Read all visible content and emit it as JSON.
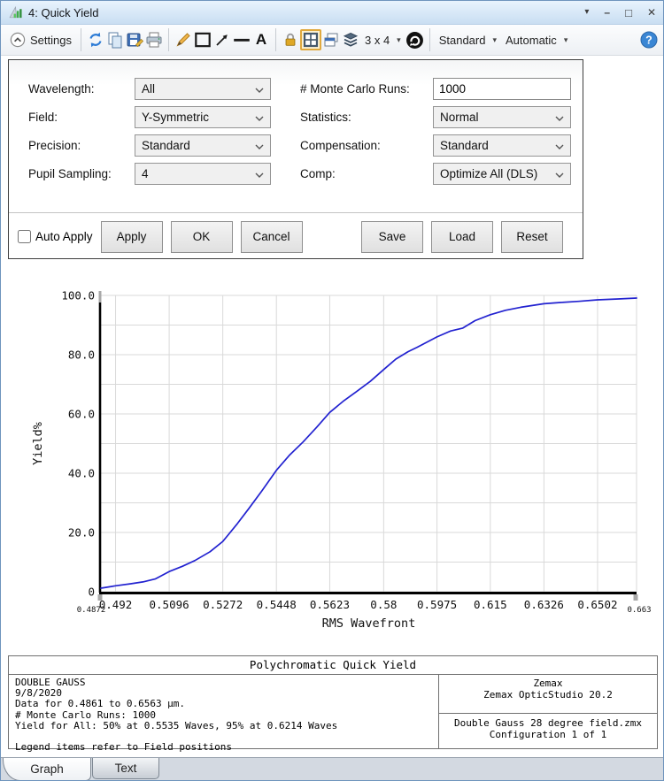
{
  "window": {
    "title": "4: Quick Yield",
    "controls": {
      "menu": "▾",
      "minimize": "–",
      "maximize": "□",
      "close": "✕"
    }
  },
  "toolbar": {
    "settings_label": "Settings",
    "text_tool_label": "A",
    "grid_size_label": "3 x 4",
    "standard_label": "Standard",
    "automatic_label": "Automatic",
    "caret": "▾",
    "help_glyph": "?"
  },
  "settings_panel": {
    "fields": [
      {
        "label": "Wavelength:",
        "value": "All",
        "type": "select"
      },
      {
        "label": "Field:",
        "value": "Y-Symmetric",
        "type": "select"
      },
      {
        "label": "Precision:",
        "value": "Standard",
        "type": "select"
      },
      {
        "label": "Pupil Sampling:",
        "value": "4",
        "type": "select"
      },
      {
        "label": "# Monte Carlo Runs:",
        "value": "1000",
        "type": "input"
      },
      {
        "label": "Statistics:",
        "value": "Normal",
        "type": "select"
      },
      {
        "label": "Compensation:",
        "value": "Standard",
        "type": "select"
      },
      {
        "label": "Comp:",
        "value": "Optimize All (DLS)",
        "type": "select"
      }
    ],
    "auto_apply_label": "Auto Apply",
    "auto_apply_checked": false,
    "buttons": [
      "Apply",
      "OK",
      "Cancel",
      "Save",
      "Load",
      "Reset"
    ]
  },
  "chart_data": {
    "type": "line",
    "title": "Polychromatic Quick Yield",
    "xlabel": "RMS Wavefront",
    "ylabel": "Yield%",
    "xlim": [
      0.4872,
      0.663
    ],
    "ylim": [
      0,
      100
    ],
    "x_major_ticks": [
      0.492,
      0.5096,
      0.5272,
      0.5448,
      0.5623,
      0.58,
      0.5975,
      0.615,
      0.6326,
      0.6502
    ],
    "x_end_labels": [
      "0.4872",
      "0.663"
    ],
    "y_ticks": [
      0,
      20,
      40,
      60,
      80,
      100
    ],
    "y_tick_labels": [
      "0",
      "20.0",
      "40.0",
      "60.0",
      "80.0",
      "100.0"
    ],
    "y_minor_step": 10,
    "grid": true,
    "legend": "none",
    "line_color": "#2222d0",
    "series": [
      {
        "name": "All",
        "x": [
          0.4872,
          0.492,
          0.497,
          0.501,
          0.505,
          0.5096,
          0.514,
          0.518,
          0.523,
          0.5272,
          0.532,
          0.5357,
          0.54,
          0.5448,
          0.549,
          0.5535,
          0.558,
          0.5623,
          0.567,
          0.571,
          0.5756,
          0.58,
          0.584,
          0.588,
          0.591,
          0.5975,
          0.602,
          0.606,
          0.61,
          0.615,
          0.62,
          0.625,
          0.6326,
          0.638,
          0.644,
          0.6502,
          0.657,
          0.663
        ],
        "y": [
          1.2,
          2.0,
          2.7,
          3.3,
          4.3,
          6.8,
          8.6,
          10.5,
          13.5,
          17.0,
          23.0,
          28.0,
          34.0,
          41.0,
          46.0,
          50.5,
          55.5,
          60.5,
          64.5,
          67.5,
          71.0,
          75.0,
          78.5,
          81.0,
          82.5,
          86.0,
          88.0,
          89.0,
          91.5,
          93.5,
          95.0,
          96.0,
          97.2,
          97.6,
          98.0,
          98.5,
          98.8,
          99.1
        ]
      }
    ],
    "annotations": {
      "yield_50": "50% at 0.5535 Waves",
      "yield_95": "95% at 0.6214 Waves"
    }
  },
  "footer": {
    "title": "Polychromatic Quick Yield",
    "left_lines": [
      "DOUBLE GAUSS",
      "9/8/2020",
      "Data for 0.4861 to 0.6563 µm.",
      "# Monte Carlo Runs: 1000",
      "Yield for All: 50% at 0.5535 Waves, 95% at 0.6214 Waves",
      "",
      "Legend items refer to Field positions"
    ],
    "right_top": [
      "Zemax",
      "Zemax OpticStudio 20.2"
    ],
    "right_bottom": [
      "Double Gauss 28 degree field.zmx",
      "Configuration 1 of 1"
    ]
  },
  "tabs": [
    {
      "label": "Graph",
      "active": true
    },
    {
      "label": "Text",
      "active": false
    }
  ]
}
